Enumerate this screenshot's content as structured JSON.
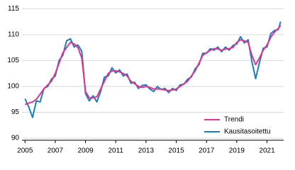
{
  "chart_data": {
    "type": "line",
    "x": [
      2005.0,
      2005.25,
      2005.5,
      2005.75,
      2006.0,
      2006.25,
      2006.5,
      2006.75,
      2007.0,
      2007.25,
      2007.5,
      2007.75,
      2008.0,
      2008.25,
      2008.5,
      2008.75,
      2009.0,
      2009.25,
      2009.5,
      2009.75,
      2010.0,
      2010.25,
      2010.5,
      2010.75,
      2011.0,
      2011.25,
      2011.5,
      2011.75,
      2012.0,
      2012.25,
      2012.5,
      2012.75,
      2013.0,
      2013.25,
      2013.5,
      2013.75,
      2014.0,
      2014.25,
      2014.5,
      2014.75,
      2015.0,
      2015.25,
      2015.5,
      2015.75,
      2016.0,
      2016.25,
      2016.5,
      2016.75,
      2017.0,
      2017.25,
      2017.5,
      2017.75,
      2018.0,
      2018.25,
      2018.5,
      2018.75,
      2019.0,
      2019.25,
      2019.5,
      2019.75,
      2020.0,
      2020.25,
      2020.5,
      2020.75,
      2021.0,
      2021.25,
      2021.5,
      2021.75,
      2021.9
    ],
    "series": [
      {
        "name": "Trendi",
        "color": "#e0358c",
        "values": [
          96.5,
          96.8,
          97.0,
          97.5,
          98.5,
          99.5,
          100.3,
          101.0,
          102.5,
          104.5,
          106.5,
          107.5,
          108.5,
          108.2,
          107.5,
          105.5,
          99.0,
          97.8,
          97.8,
          98.0,
          99.5,
          101.0,
          102.5,
          103.0,
          103.0,
          102.8,
          102.5,
          102.0,
          101.0,
          100.5,
          100.0,
          99.8,
          100.0,
          99.8,
          99.5,
          99.5,
          99.5,
          99.3,
          99.2,
          99.3,
          99.5,
          100.0,
          100.5,
          101.0,
          102.0,
          103.0,
          104.5,
          106.0,
          106.5,
          107.0,
          107.3,
          107.2,
          107.0,
          107.2,
          107.3,
          107.5,
          108.5,
          109.0,
          108.8,
          108.5,
          106.0,
          104.2,
          105.5,
          107.0,
          108.0,
          109.5,
          110.5,
          111.2,
          111.8
        ]
      },
      {
        "name": "Kausitasoitettu",
        "color": "#1b7dc2",
        "values": [
          97.6,
          96.0,
          94.0,
          97.2,
          97.0,
          99.6,
          100.0,
          101.4,
          102.0,
          105.0,
          106.0,
          108.8,
          109.2,
          107.6,
          108.0,
          106.8,
          98.6,
          97.2,
          98.2,
          97.0,
          99.0,
          101.8,
          102.0,
          103.6,
          102.6,
          103.2,
          102.0,
          102.4,
          100.6,
          100.8,
          99.6,
          100.2,
          100.3,
          99.5,
          99.0,
          100.0,
          99.4,
          99.6,
          98.8,
          99.6,
          99.2,
          100.3,
          100.4,
          101.4,
          101.8,
          103.4,
          104.2,
          106.4,
          106.4,
          107.3,
          107.0,
          107.6,
          106.7,
          107.6,
          107.0,
          107.9,
          108.2,
          109.6,
          108.4,
          109.0,
          104.8,
          101.5,
          104.6,
          107.4,
          107.6,
          110.2,
          110.8,
          111.0,
          112.5
        ]
      }
    ],
    "xlim": [
      2004.8,
      2022.1
    ],
    "xticks": [
      2005,
      2007,
      2009,
      2011,
      2013,
      2015,
      2017,
      2019,
      2021
    ],
    "ylim": [
      89.6,
      116
    ],
    "yticks": [
      90,
      95,
      100,
      105,
      110,
      115
    ],
    "grid": true,
    "legend": "bottom-right"
  }
}
